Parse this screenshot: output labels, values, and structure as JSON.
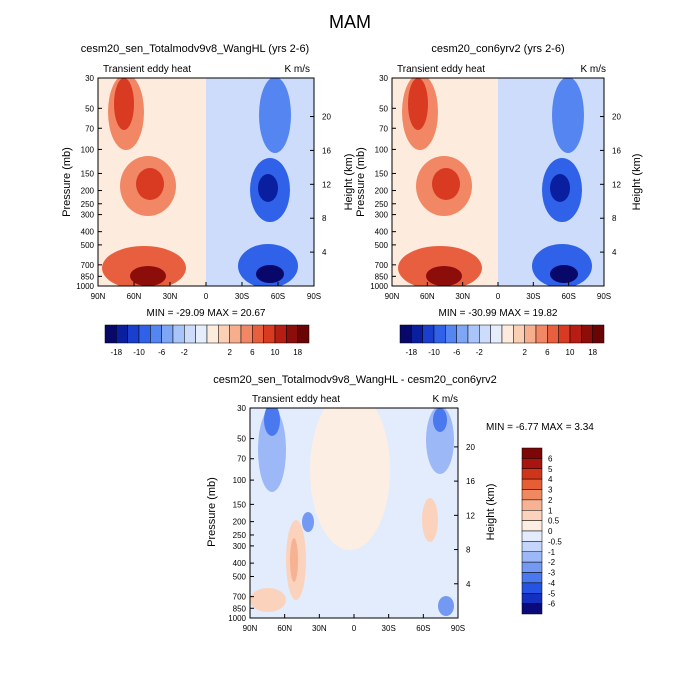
{
  "page_title": "MAM",
  "chart_data": [
    {
      "type": "heatmap",
      "title": "cesm20_sen_Totalmodv9v8_WangHL (yrs 2-6)",
      "subtitle_left": "Transient eddy heat",
      "subtitle_right": "K m/s",
      "ylabel": "Pressure (mb)",
      "ylabel_right": "Height (km)",
      "x_ticks": [
        "90N",
        "60N",
        "30N",
        "0",
        "30S",
        "60S",
        "90S"
      ],
      "y_ticks": [
        "30",
        "50",
        "70",
        "100",
        "150",
        "200",
        "250",
        "300",
        "400",
        "500",
        "700",
        "850",
        "1000"
      ],
      "height_ticks": [
        "20",
        "16",
        "12",
        "8",
        "4"
      ],
      "stats": "MIN = -29.09   MAX = 20.67",
      "stats_position": "below-plot",
      "ylim_mb": [
        1000,
        30
      ],
      "xlim_deg": [
        90,
        -90
      ],
      "colorbar_orientation": "horizontal",
      "colorbar_labels": [
        "-18",
        "-10",
        "-6",
        "-2",
        "2",
        "6",
        "10",
        "18"
      ]
    },
    {
      "type": "heatmap",
      "title": "cesm20_con6yrv2 (yrs 2-6)",
      "subtitle_left": "Transient eddy heat",
      "subtitle_right": "K m/s",
      "ylabel": "Pressure (mb)",
      "ylabel_right": "Height (km)",
      "x_ticks": [
        "90N",
        "60N",
        "30N",
        "0",
        "30S",
        "60S",
        "90S"
      ],
      "y_ticks": [
        "30",
        "50",
        "70",
        "100",
        "150",
        "200",
        "250",
        "300",
        "400",
        "500",
        "700",
        "850",
        "1000"
      ],
      "height_ticks": [
        "20",
        "16",
        "12",
        "8",
        "4"
      ],
      "stats": "MIN = -30.99   MAX = 19.82",
      "stats_position": "below-plot",
      "ylim_mb": [
        1000,
        30
      ],
      "xlim_deg": [
        90,
        -90
      ],
      "colorbar_orientation": "horizontal",
      "colorbar_labels": [
        "-18",
        "-10",
        "-6",
        "-2",
        "2",
        "6",
        "10",
        "18"
      ]
    },
    {
      "type": "heatmap",
      "title": "cesm20_sen_Totalmodv9v8_WangHL - cesm20_con6yrv2",
      "subtitle_left": "Transient eddy heat",
      "subtitle_right": "K m/s",
      "ylabel": "Pressure (mb)",
      "ylabel_right": "Height (km)",
      "x_ticks": [
        "90N",
        "60N",
        "30N",
        "0",
        "30S",
        "60S",
        "90S"
      ],
      "y_ticks": [
        "30",
        "50",
        "70",
        "100",
        "150",
        "200",
        "250",
        "300",
        "400",
        "500",
        "700",
        "850",
        "1000"
      ],
      "height_ticks": [
        "20",
        "16",
        "12",
        "8",
        "4"
      ],
      "stats": "MIN = -6.77   MAX =   3.34",
      "stats_position": "right-of-plot",
      "ylim_mb": [
        1000,
        30
      ],
      "xlim_deg": [
        90,
        -90
      ],
      "colorbar_orientation": "vertical",
      "colorbar_labels": [
        "6",
        "5",
        "4",
        "3",
        "2",
        "1",
        "0.5",
        "0",
        "-0.5",
        "-1",
        "-2",
        "-3",
        "-4",
        "-5",
        "-6"
      ]
    }
  ],
  "palette": {
    "full": [
      "#08086b",
      "#0a1fa0",
      "#1a3fcf",
      "#2f62e8",
      "#5585f0",
      "#7fa6f5",
      "#a8c4f8",
      "#cddcfa",
      "#e6eefc",
      "#fdebdd",
      "#fbcfb4",
      "#f7ae8c",
      "#f28765",
      "#e85f40",
      "#d83a22",
      "#b71e13",
      "#8c0d0a",
      "#6a0506"
    ],
    "diff": [
      "#0a0a7a",
      "#1330c0",
      "#2554e4",
      "#4a78ee",
      "#7399f3",
      "#9cb8f7",
      "#c3d5fa",
      "#e2ecfc",
      "#fdeee3",
      "#fbd3bc",
      "#f7b293",
      "#f0895f",
      "#e55e34",
      "#cf3519",
      "#a81410",
      "#7d0606"
    ]
  }
}
